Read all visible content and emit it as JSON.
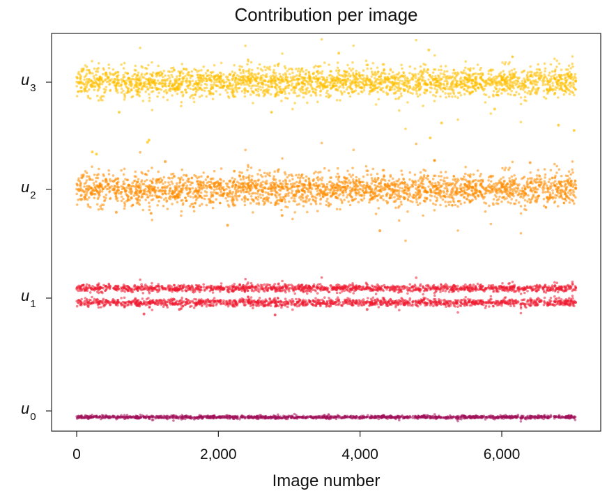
{
  "chart_data": {
    "type": "scatter",
    "title": "Contribution per image",
    "xlabel": "Image number",
    "ylabel": "",
    "xlim": [
      -350,
      7400
    ],
    "x_ticks": [
      0,
      2000,
      4000,
      6000
    ],
    "x_tick_labels": [
      "0",
      "2,000",
      "4,000",
      "6,000"
    ],
    "y_categories": [
      {
        "base": "u",
        "sub": "0"
      },
      {
        "base": "u",
        "sub": "1"
      },
      {
        "base": "u",
        "sub": "2"
      },
      {
        "base": "u",
        "sub": "3"
      }
    ],
    "grid": false,
    "legend": "none",
    "n_images": 7050,
    "series": [
      {
        "category": "u0",
        "color": "#a0105a",
        "x_range": [
          0,
          7050
        ],
        "bands": [
          {
            "center": -0.055,
            "spread": 0.012
          }
        ]
      },
      {
        "category": "u1",
        "color": "#ee1a2f",
        "x_range": [
          0,
          7050
        ],
        "bands": [
          {
            "center": 1.09,
            "spread": 0.03
          },
          {
            "center": 0.96,
            "spread": 0.03
          }
        ],
        "outliers": [
          [
            950,
            0.86
          ],
          [
            2800,
            0.85
          ],
          [
            1450,
            0.9
          ],
          [
            4100,
            0.9
          ]
        ]
      },
      {
        "category": "u2",
        "color": "#ff8c00",
        "x_range": [
          0,
          7050
        ],
        "bands": [
          {
            "center": 2.0,
            "spread": 0.13
          }
        ],
        "outliers": [
          [
            2130,
            1.67
          ],
          [
            4280,
            1.62
          ],
          [
            560,
            1.79
          ],
          [
            1050,
            1.78
          ],
          [
            2900,
            1.76
          ],
          [
            5050,
            2.27
          ],
          [
            6400,
            2.25
          ],
          [
            1250,
            2.26
          ]
        ]
      },
      {
        "category": "u3",
        "color": "#ffc000",
        "x_range": [
          0,
          7050
        ],
        "bands": [
          {
            "center": 3.0,
            "spread": 0.12
          }
        ],
        "outliers": [
          [
            3700,
            3.27
          ],
          [
            4970,
            3.3
          ],
          [
            1020,
            2.46
          ],
          [
            1000,
            2.44
          ],
          [
            4990,
            2.48
          ],
          [
            5150,
            2.62
          ],
          [
            220,
            2.35
          ],
          [
            7020,
            2.55
          ],
          [
            280,
            2.33
          ],
          [
            6800,
            2.6
          ],
          [
            600,
            2.72
          ],
          [
            2750,
            2.72
          ],
          [
            5900,
            2.75
          ]
        ]
      }
    ]
  }
}
